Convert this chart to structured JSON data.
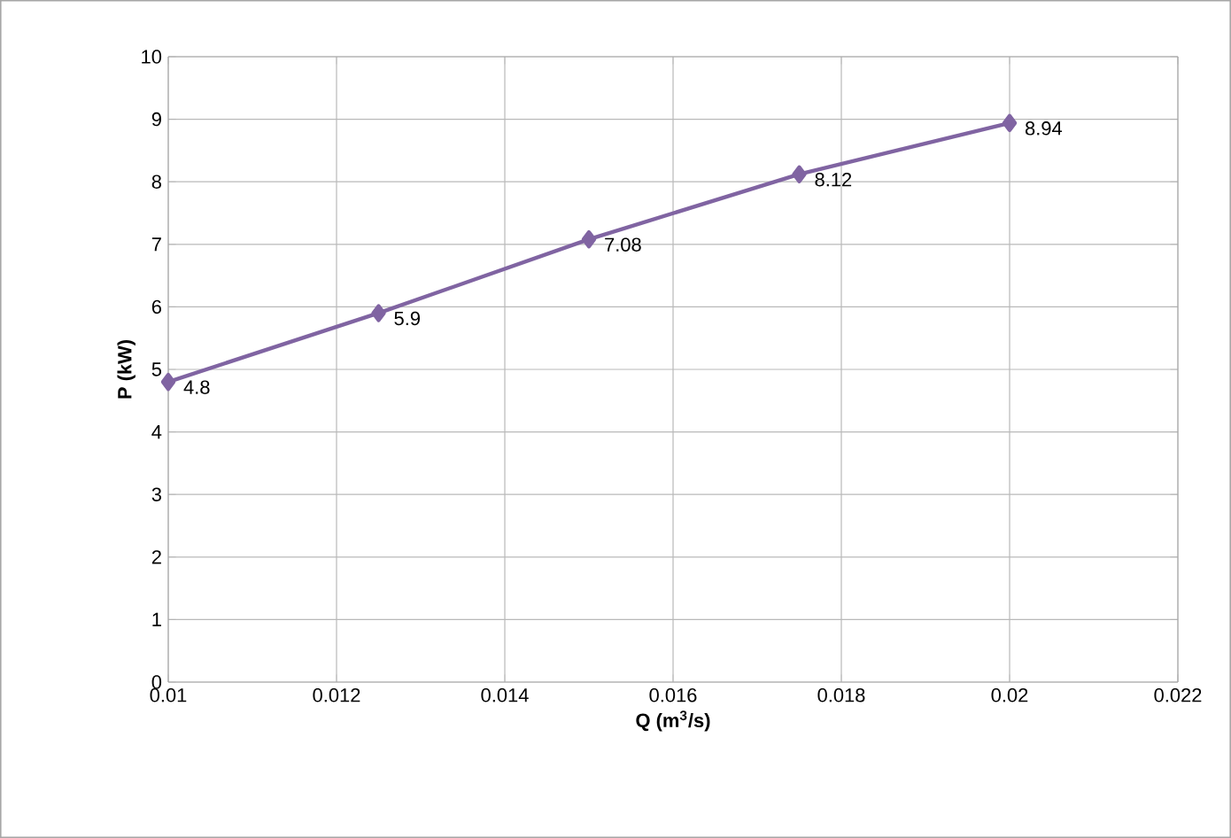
{
  "chart_data": {
    "type": "line",
    "xlabel": "Q (m$^{3}$/s)",
    "ylabel": "P (kW)",
    "x": [
      0.01,
      0.0125,
      0.015,
      0.0175,
      0.02
    ],
    "series": [
      {
        "color": "#8064a2",
        "values": [
          4.8,
          5.9,
          7.08,
          8.12,
          8.94
        ]
      }
    ],
    "xlim": [
      0.01,
      0.022
    ],
    "xticks": [
      0.01,
      0.012,
      0.014,
      0.016,
      0.018,
      0.02,
      0.022
    ],
    "ylim": [
      0,
      10
    ],
    "yticks": [
      0,
      1,
      2,
      3,
      4,
      5,
      6,
      7,
      8,
      9,
      10
    ],
    "grid": true,
    "marker": "diamond",
    "line_style": "solid",
    "data_labels": true
  }
}
